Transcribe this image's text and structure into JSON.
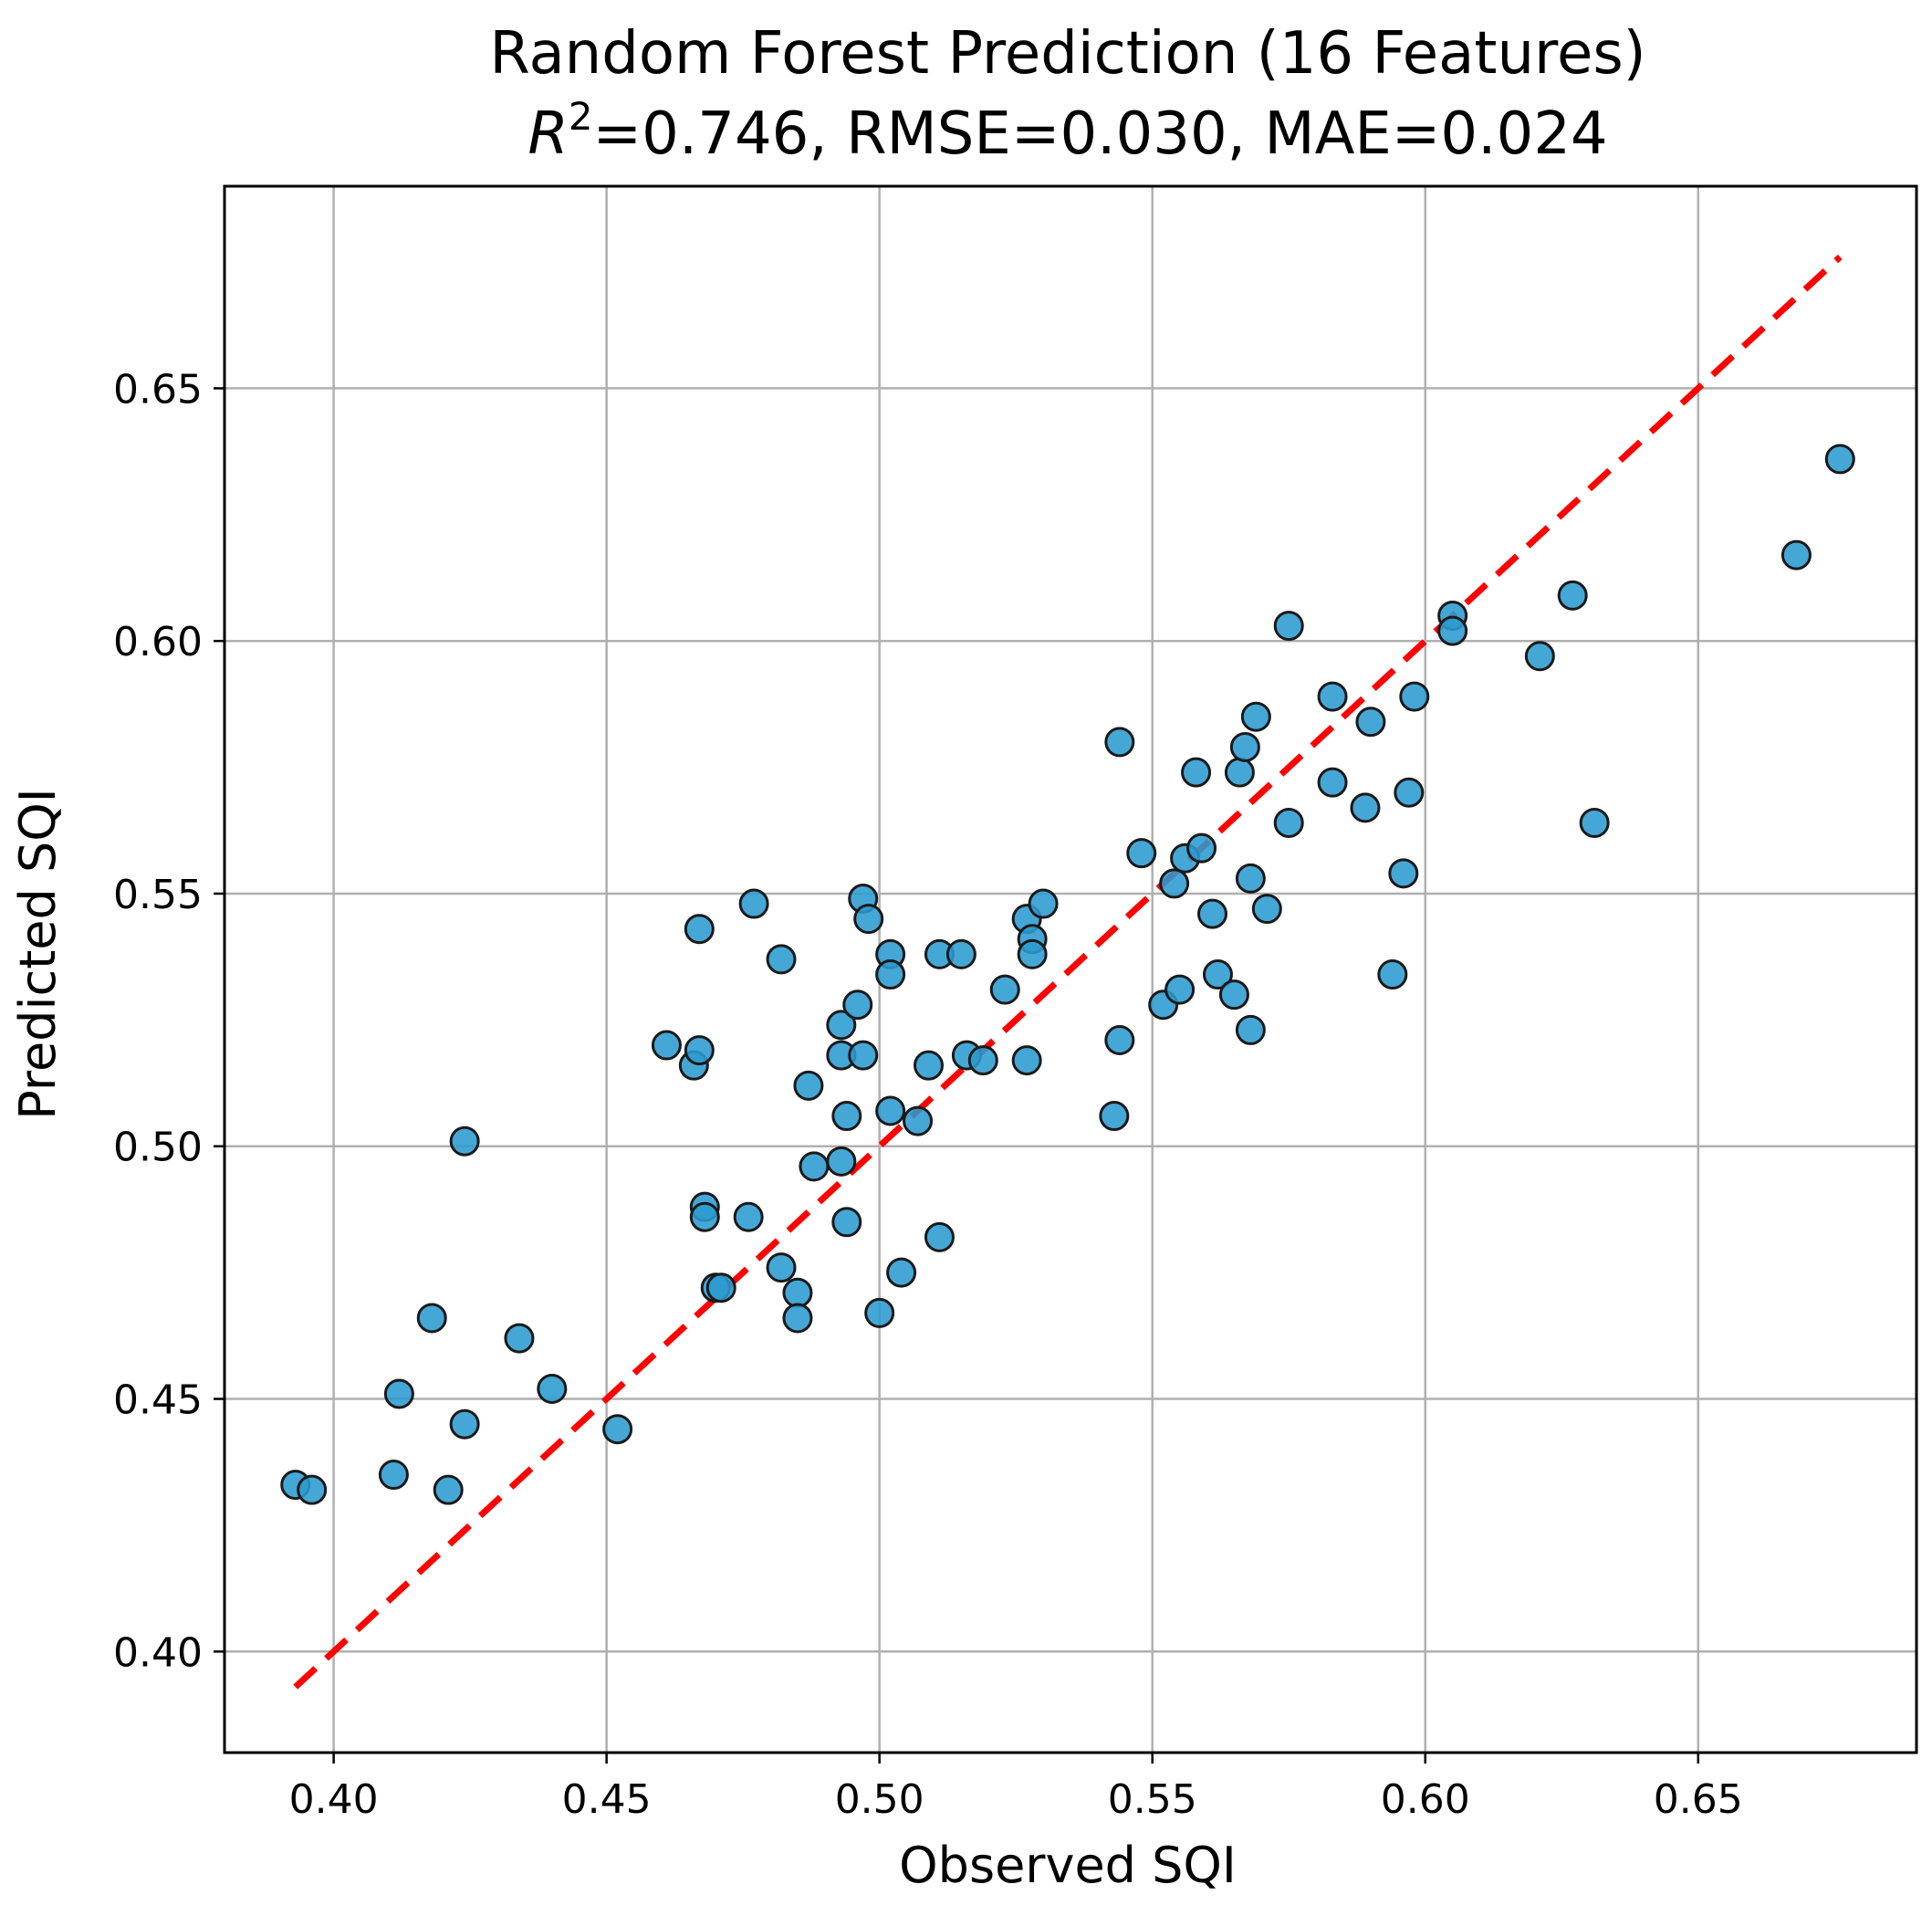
{
  "chart_data": {
    "type": "scatter",
    "title": "Random Forest Prediction (16 Features)",
    "subtitle": {
      "r2_symbol": "R",
      "r2_exponent": "2",
      "metrics_text": "=0.746, RMSE=0.030, MAE=0.024"
    },
    "xlabel": "Observed SQI",
    "ylabel": "Predicted SQI",
    "xlim": [
      0.38,
      0.69
    ],
    "ylim": [
      0.38,
      0.69
    ],
    "x_ticks": [
      "0.40",
      "0.45",
      "0.50",
      "0.55",
      "0.60",
      "0.65"
    ],
    "y_ticks": [
      "0.40",
      "0.45",
      "0.50",
      "0.55",
      "0.60",
      "0.65"
    ],
    "grid": true,
    "point_color": "#2b9bd0",
    "line_color": "#ff0000",
    "identity_line": [
      0.393,
      0.676
    ],
    "points": [
      [
        0.393,
        0.433
      ],
      [
        0.396,
        0.432
      ],
      [
        0.411,
        0.435
      ],
      [
        0.412,
        0.451
      ],
      [
        0.418,
        0.466
      ],
      [
        0.421,
        0.432
      ],
      [
        0.424,
        0.445
      ],
      [
        0.424,
        0.501
      ],
      [
        0.434,
        0.462
      ],
      [
        0.44,
        0.452
      ],
      [
        0.452,
        0.444
      ],
      [
        0.461,
        0.52
      ],
      [
        0.466,
        0.516
      ],
      [
        0.467,
        0.543
      ],
      [
        0.467,
        0.519
      ],
      [
        0.468,
        0.488
      ],
      [
        0.468,
        0.486
      ],
      [
        0.47,
        0.472
      ],
      [
        0.471,
        0.472
      ],
      [
        0.476,
        0.486
      ],
      [
        0.477,
        0.548
      ],
      [
        0.482,
        0.537
      ],
      [
        0.482,
        0.476
      ],
      [
        0.485,
        0.471
      ],
      [
        0.485,
        0.466
      ],
      [
        0.487,
        0.512
      ],
      [
        0.488,
        0.496
      ],
      [
        0.493,
        0.524
      ],
      [
        0.493,
        0.518
      ],
      [
        0.493,
        0.497
      ],
      [
        0.494,
        0.506
      ],
      [
        0.494,
        0.485
      ],
      [
        0.496,
        0.528
      ],
      [
        0.497,
        0.549
      ],
      [
        0.498,
        0.545
      ],
      [
        0.497,
        0.518
      ],
      [
        0.5,
        0.467
      ],
      [
        0.502,
        0.538
      ],
      [
        0.502,
        0.534
      ],
      [
        0.502,
        0.507
      ],
      [
        0.504,
        0.475
      ],
      [
        0.507,
        0.505
      ],
      [
        0.509,
        0.516
      ],
      [
        0.511,
        0.538
      ],
      [
        0.511,
        0.482
      ],
      [
        0.515,
        0.538
      ],
      [
        0.516,
        0.518
      ],
      [
        0.519,
        0.517
      ],
      [
        0.523,
        0.531
      ],
      [
        0.527,
        0.545
      ],
      [
        0.527,
        0.517
      ],
      [
        0.528,
        0.541
      ],
      [
        0.528,
        0.538
      ],
      [
        0.53,
        0.548
      ],
      [
        0.543,
        0.506
      ],
      [
        0.544,
        0.58
      ],
      [
        0.544,
        0.521
      ],
      [
        0.548,
        0.558
      ],
      [
        0.552,
        0.528
      ],
      [
        0.554,
        0.552
      ],
      [
        0.555,
        0.531
      ],
      [
        0.556,
        0.557
      ],
      [
        0.558,
        0.574
      ],
      [
        0.559,
        0.559
      ],
      [
        0.561,
        0.546
      ],
      [
        0.562,
        0.534
      ],
      [
        0.565,
        0.53
      ],
      [
        0.566,
        0.574
      ],
      [
        0.567,
        0.579
      ],
      [
        0.568,
        0.553
      ],
      [
        0.568,
        0.523
      ],
      [
        0.569,
        0.585
      ],
      [
        0.571,
        0.547
      ],
      [
        0.575,
        0.603
      ],
      [
        0.575,
        0.564
      ],
      [
        0.583,
        0.589
      ],
      [
        0.583,
        0.572
      ],
      [
        0.589,
        0.567
      ],
      [
        0.59,
        0.584
      ],
      [
        0.594,
        0.534
      ],
      [
        0.596,
        0.554
      ],
      [
        0.597,
        0.57
      ],
      [
        0.598,
        0.589
      ],
      [
        0.605,
        0.605
      ],
      [
        0.605,
        0.602
      ],
      [
        0.621,
        0.597
      ],
      [
        0.627,
        0.609
      ],
      [
        0.631,
        0.564
      ],
      [
        0.668,
        0.617
      ],
      [
        0.676,
        0.636
      ]
    ]
  }
}
